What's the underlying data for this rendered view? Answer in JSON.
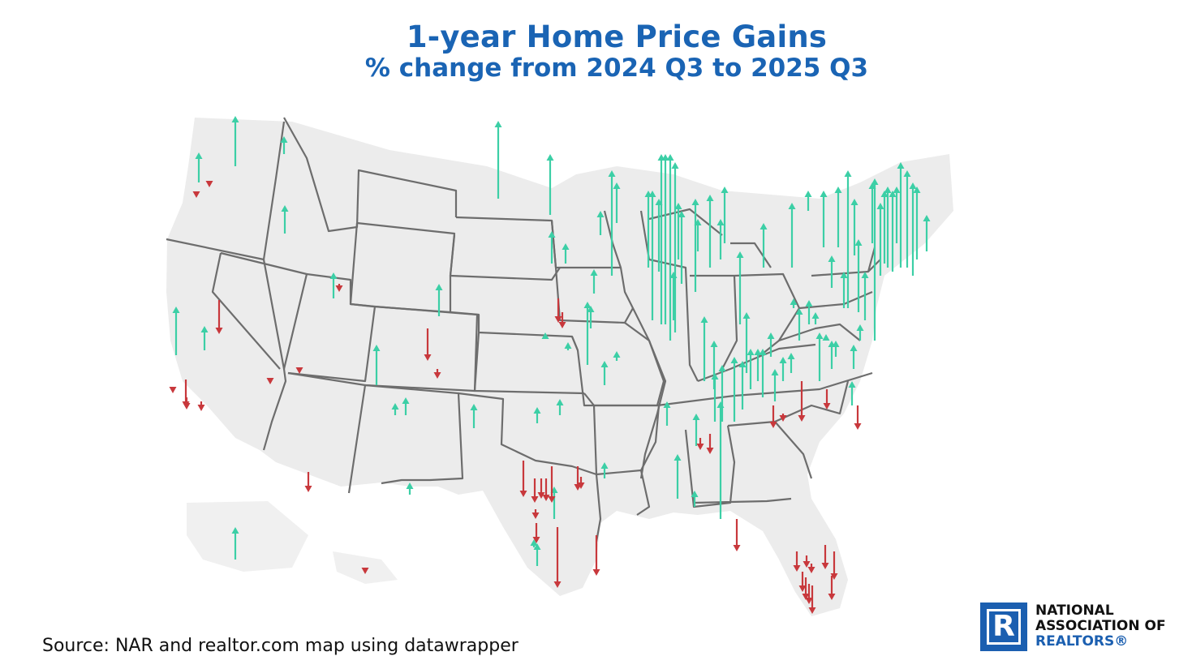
{
  "title": "1-year Home Price Gains",
  "subtitle": "% change from 2024 Q3 to 2025 Q3",
  "source": "Source: NAR and realtor.com map using datawrapper",
  "logo": {
    "mark": "R",
    "line1": "NATIONAL",
    "line2": "ASSOCIATION OF",
    "line3": "REALTORS®"
  },
  "colors": {
    "title": "#1a64b4",
    "gain_arrow": "#3ccfa6",
    "loss_arrow": "#c8383c",
    "state_border": "#6d6d6d",
    "land": "#ececec",
    "logo_blue": "#1b5fb0"
  },
  "legend_semantics": {
    "up_arrow": "price gain",
    "down_arrow": "price decline"
  }
}
